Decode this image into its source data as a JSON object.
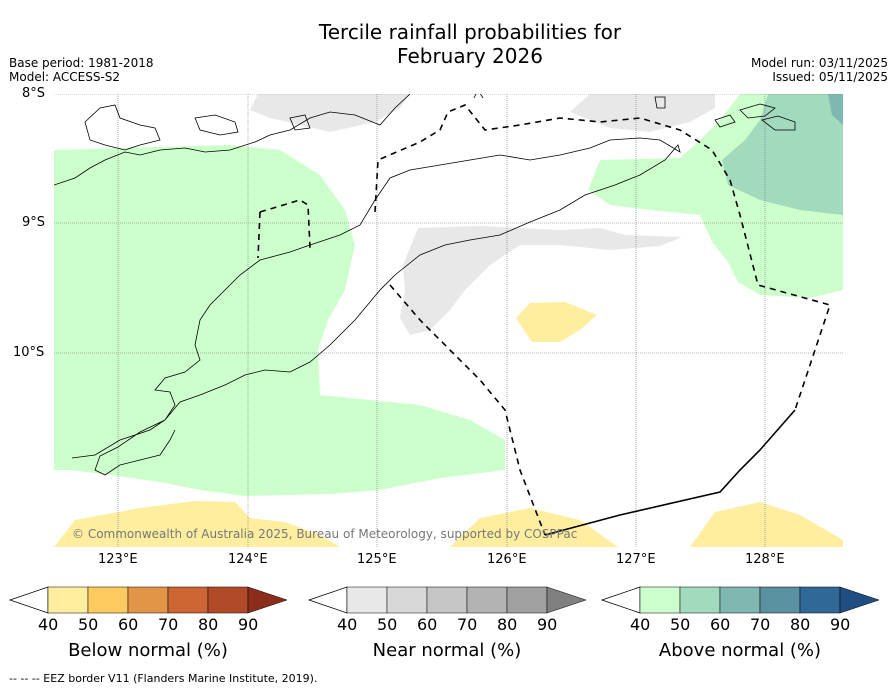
{
  "title_line1": "Tercile rainfall probabilities for",
  "title_line2": "February 2026",
  "base_period": "Base period: 1981-2018",
  "model": "Model: ACCESS-S2",
  "model_run": "Model run: 03/11/2025",
  "issued": "Issued: 05/11/2025",
  "lat_labels": [
    "8°S",
    "9°S",
    "10°S"
  ],
  "lon_labels": [
    "123°E",
    "124°E",
    "125°E",
    "126°E",
    "127°E",
    "128°E"
  ],
  "copyright": "© Commonwealth of Australia 2025, Bureau of Meteorology, supported by COSPPac",
  "footnote": "--  --  -- EEZ border V11 (Flanders Marine Institute, 2019).",
  "colorbars": [
    {
      "title": "Below normal (%)",
      "ticks": [
        "40",
        "50",
        "60",
        "70",
        "80",
        "90"
      ],
      "colors": [
        "#ffeea0",
        "#fdca60",
        "#e29447",
        "#cd6634",
        "#b04a28",
        "#8c2d1c"
      ]
    },
    {
      "title": "Near normal (%)",
      "ticks": [
        "40",
        "50",
        "60",
        "70",
        "80",
        "90"
      ],
      "colors": [
        "#e8e8e8",
        "#d8d8d8",
        "#c6c6c6",
        "#b3b3b3",
        "#a0a0a0",
        "#808080"
      ]
    },
    {
      "title": "Above normal (%)",
      "ticks": [
        "40",
        "50",
        "60",
        "70",
        "80",
        "90"
      ],
      "colors": [
        "#ccffcc",
        "#a2dabd",
        "#7fb8b0",
        "#5a91a0",
        "#306898",
        "#1f4e82"
      ]
    }
  ]
}
